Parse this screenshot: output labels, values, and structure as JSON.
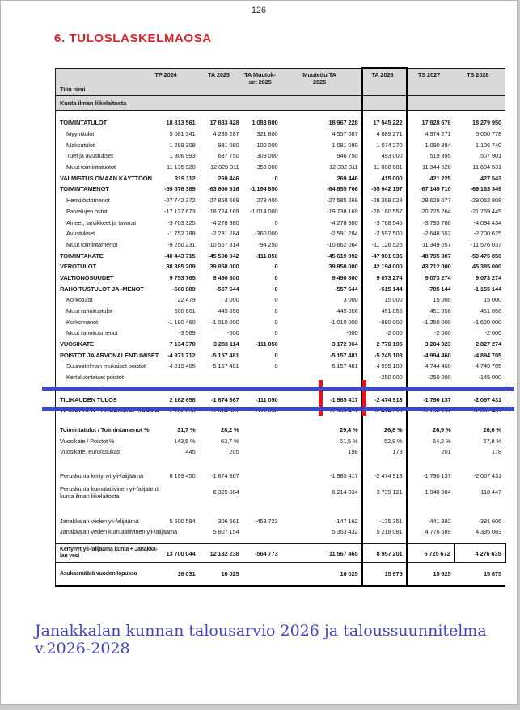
{
  "page": {
    "number": "126",
    "title": "6. TULOSLASKELMAOSA",
    "footer": "Janakkalan kunnan talousarvio 2026 ja taloussuunnitelma v.2026-2028"
  },
  "annotations": {
    "highlight_color": "#3b49c6",
    "mark_color": "#e3141c",
    "note": "two blue horizontal highlight lines around result rows, two red vertical marks"
  },
  "table": {
    "name_header": "Tilin nimi",
    "columns": [
      {
        "lines": [
          "TP 2024"
        ]
      },
      {
        "lines": [
          "TA 2025"
        ]
      },
      {
        "lines": [
          "TA Muutok-",
          "set 2025"
        ]
      },
      {
        "lines": [
          "Muutettu TA",
          "2025"
        ]
      },
      {
        "lines": [
          "TA 2026"
        ],
        "boxed": true
      },
      {
        "lines": [
          "TS 2027"
        ]
      },
      {
        "lines": [
          "TS 2028"
        ]
      }
    ],
    "rows": [
      {
        "section": true,
        "label": "Kunta ilman liikelaitosta",
        "v": [
          "",
          "",
          "",
          "",
          "",
          "",
          ""
        ]
      },
      {
        "gap": 9
      },
      {
        "bold": true,
        "label": "TOIMINTATULOT",
        "v": [
          "18 813 561",
          "17 883 428",
          "1 083 800",
          "18 967 228",
          "17 545 222",
          "17 928 678",
          "18 279 950"
        ]
      },
      {
        "indent": true,
        "label": "Myyntitulot",
        "v": [
          "5 081 341",
          "4 235 287",
          "321 800",
          "4 557 087",
          "4 889 271",
          "4 974 271",
          "5 060 778"
        ]
      },
      {
        "indent": true,
        "label": "Maksutulot",
        "v": [
          "1 289 308",
          "981 080",
          "100 000",
          "1 081 080",
          "1 074 270",
          "1 090 384",
          "1 106 740"
        ]
      },
      {
        "indent": true,
        "label": "Tuet ja avustukset",
        "v": [
          "1 306 993",
          "637 750",
          "309 000",
          "946 750",
          "493 000",
          "519 395",
          "507 901"
        ]
      },
      {
        "indent": true,
        "label": "Muut toimintatuotot",
        "v": [
          "11 135 920",
          "12 029 311",
          "353 000",
          "12 382 311",
          "11 088 681",
          "11 344 628",
          "11 604 531"
        ]
      },
      {
        "bold": true,
        "label": "VALMISTUS OMAAN KÄYTTÖÖN",
        "v": [
          "319 112",
          "269 446",
          "0",
          "269 446",
          "415 000",
          "421 225",
          "427 543"
        ]
      },
      {
        "bold": true,
        "label": "TOIMINTAMENOT",
        "v": [
          "-59 576 389",
          "-63 660 916",
          "-1 194 850",
          "-64 855 766",
          "-65 942 157",
          "-67 145 710",
          "-69 183 349"
        ]
      },
      {
        "indent": true,
        "label": "Henkilöstömenot",
        "v": [
          "-27 742 372",
          "-27 858 669",
          "273 400",
          "-27 585 269",
          "-28 269 028",
          "-28 629 077",
          "-29 052 808"
        ]
      },
      {
        "indent": true,
        "label": "Palvelujen ostot",
        "v": [
          "-17 127 673",
          "-18 724 169",
          "-1 014 000",
          "-19 738 169",
          "-20 180 557",
          "-20 725 264",
          "-21 759 445"
        ]
      },
      {
        "indent": true,
        "label": "Aineet, tarvikkeet ja tavarat",
        "v": [
          "-3 703 325",
          "-4 278 980",
          "0",
          "-4 278 980",
          "-3 768 546",
          "-3 793 760",
          "-4 094 434"
        ]
      },
      {
        "indent": true,
        "label": "Avustukset",
        "v": [
          "-1 752 788",
          "-2 231 284",
          "-360 000",
          "-2 591 284",
          "-2 597 500",
          "-2 648 552",
          "-2 700 625"
        ]
      },
      {
        "indent": true,
        "label": "Muut toimintamenot",
        "v": [
          "-9 250 231",
          "-10 567 814",
          "-94 250",
          "-10 662 064",
          "-11 126 526",
          "-11 349 057",
          "-11 576 037"
        ]
      },
      {
        "bold": true,
        "label": "TOIMINTAKATE",
        "v": [
          "-40 443 715",
          "-45 508 042",
          "-111 050",
          "-45 619 092",
          "-47 981 935",
          "-48 795 807",
          "-50 475 856"
        ]
      },
      {
        "bold": true,
        "label": "VEROTULOT",
        "v": [
          "38 385 209",
          "39 858 000",
          "0",
          "39 858 000",
          "42 194 000",
          "43 712 000",
          "45 385 000"
        ]
      },
      {
        "bold": true,
        "label": "VALTIONOSUUDET",
        "v": [
          "9 753 765",
          "9 490 800",
          "0",
          "9 490 800",
          "9 073 274",
          "9 073 274",
          "9 073 274"
        ]
      },
      {
        "bold": true,
        "label": "RAHOITUSTULOT JA -MENOT",
        "v": [
          "-560 889",
          "-557 644",
          "0",
          "-557 644",
          "-515 144",
          "-785 144",
          "-1 155 144"
        ]
      },
      {
        "indent": true,
        "label": "Korkotulot",
        "v": [
          "22 479",
          "3 000",
          "0",
          "3 000",
          "15 000",
          "15 000",
          "15 000"
        ]
      },
      {
        "indent": true,
        "label": "Muut rahoitustulot",
        "v": [
          "600 661",
          "449 856",
          "0",
          "449 856",
          "451 856",
          "451 856",
          "451 856"
        ]
      },
      {
        "indent": true,
        "label": "Korkomenot",
        "v": [
          "-1 180 460",
          "-1 010 000",
          "0",
          "-1 010 000",
          "-980 000",
          "-1 250 000",
          "-1 620 000"
        ]
      },
      {
        "indent": true,
        "label": "Muut rahoitusmenot",
        "v": [
          "-3 569",
          "-500",
          "0",
          "-500",
          "-2 000",
          "-2 000",
          "-2 000"
        ]
      },
      {
        "bold": true,
        "label": "VUOSIKATE",
        "v": [
          "7 134 370",
          "3 283 114",
          "-111 050",
          "3 172 064",
          "2 770 195",
          "3 204 323",
          "2 827 274"
        ]
      },
      {
        "bold": true,
        "label": "POISTOT JA ARVONALENTUMISET",
        "v": [
          "-4 971 712",
          "-5 157 481",
          "0",
          "-5 157 481",
          "-5 245 108",
          "-4 994 460",
          "-4 894 705"
        ]
      },
      {
        "indent": true,
        "label": "Suunnitelman mukaiset poistot",
        "v": [
          "-4 819 405",
          "-5 157 481",
          "0",
          "-5 157 481",
          "-4 995 108",
          "-4 744 460",
          "-4 749 705"
        ]
      },
      {
        "indent": true,
        "label": "Kertaluonteiset poistot",
        "v": [
          "",
          "",
          "",
          "",
          "-250 000",
          "-250 000",
          "-145 000"
        ]
      },
      {
        "indent": true,
        "label": "Arvonalentumiset",
        "v": [
          "-152 307",
          "",
          "",
          "",
          "",
          "",
          ""
        ]
      },
      {
        "bold": true,
        "label": "TILIKAUDEN TULOS",
        "v": [
          "2 162 658",
          "-1 874 367",
          "-111 050",
          "-1 985 417",
          "-2 474 913",
          "-1 790 137",
          "-2 067 431"
        ]
      },
      {
        "bold": true,
        "label": "TILIKAUDEN YLIJÄÄMÄ/ALIJÄÄMÄ",
        "v": [
          "2 162 658",
          "-1 874 367",
          "-111 050",
          "-1 985 417",
          "-2 474 913",
          "-1 790 137",
          "-2 067 431"
        ]
      },
      {
        "gap": 10
      },
      {
        "bold": true,
        "label": "Toimintatulot / Toimintamenot %",
        "v": [
          "31,7 %",
          "28,2 %",
          "",
          "29,4 %",
          "26,8 %",
          "26,9 %",
          "26,6 %"
        ]
      },
      {
        "label": "Vuosikate / Poistot %",
        "v": [
          "143,5 %",
          "63,7 %",
          "",
          "61,5 %",
          "52,8 %",
          "64,2 %",
          "57,8 %"
        ]
      },
      {
        "label": "Vuosikate, euro/asukas",
        "v": [
          "445",
          "205",
          "",
          "198",
          "173",
          "201",
          "178"
        ]
      },
      {
        "gap": 16
      },
      {
        "label": "Peruskunta kertynyt yli-/alijäämä",
        "v": [
          "8 199 450",
          "-1 874 367",
          "",
          "-1 985 417",
          "-2 474 913",
          "-1 790 137",
          "-2 067 431"
        ]
      },
      {
        "label": "Peruskunta kumulatiivinen yli-/alijäämä",
        "label2": "kunta ilman liikelaitosta",
        "h": 27,
        "v": [
          "",
          "6 325 084",
          "",
          "6 214 034",
          "3 739 121",
          "1 948 984",
          "-118 447"
        ]
      },
      {
        "gap": 15
      },
      {
        "label": "Janakkalan veden yli-/alijäämä",
        "v": [
          "5 500 594",
          "306 561",
          "-453 723",
          "-147 162",
          "-135 351",
          "-441 392",
          "-381 606"
        ]
      },
      {
        "label": "Janakkalan veden kumulatiivinen yli-/alijäämä",
        "v": [
          "",
          "5 807 154",
          "",
          "5 353 432",
          "5 218 081",
          "4 776 689",
          "4 395 083"
        ]
      },
      {
        "gap": 8
      },
      {
        "frame": true,
        "box_last": true,
        "h": 23,
        "label": "Kertynyt yli-/alijäämä kunta + Janakka-",
        "label2": "lan vesi",
        "v": [
          "13 700 044",
          "12 132 238",
          "-564 773",
          "11 567 465",
          "8 957 201",
          "6 725 672",
          "4 276 635"
        ]
      },
      {
        "frame": true,
        "last": true,
        "h": 29,
        "label": "Asukasmäärä vuoden lopussa",
        "v": [
          "16 031",
          "16 025",
          "",
          "16 025",
          "15 975",
          "15 925",
          "15 875"
        ]
      }
    ]
  }
}
